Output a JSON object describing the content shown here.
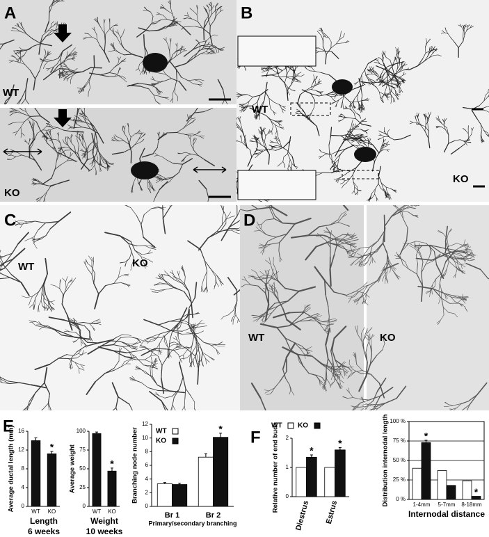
{
  "panel_letters": [
    "A",
    "B",
    "C",
    "D",
    "E",
    "F"
  ],
  "image_tags": {
    "A": [
      "WT",
      "KO"
    ],
    "B": [
      "WT",
      "KO"
    ],
    "C": [
      "WT",
      "KO"
    ],
    "D": [
      "WT",
      "KO"
    ]
  },
  "chart_data": [
    {
      "type": "bar",
      "ylabel": "Average ductal length (mm)",
      "categories": [
        "WT",
        "KO"
      ],
      "values": [
        14,
        11.2
      ],
      "errors": [
        0.6,
        0.5
      ],
      "stars": [
        null,
        "*"
      ],
      "color": "#111111",
      "ylim": [
        0,
        16
      ],
      "yticks": [
        0,
        4,
        8,
        12,
        16
      ],
      "xlabel": [
        "Length",
        "6 weeks"
      ]
    },
    {
      "type": "bar",
      "ylabel": "Average weight",
      "categories": [
        "WT",
        "KO"
      ],
      "values": [
        97,
        47
      ],
      "errors": [
        2,
        4
      ],
      "stars": [
        null,
        "*"
      ],
      "color": "#111111",
      "ylim": [
        0,
        100
      ],
      "yticks": [
        0,
        25,
        50,
        75,
        100
      ],
      "xlabel": [
        "Weight",
        "10 weeks"
      ]
    },
    {
      "type": "bar",
      "ylabel": "Branching node number",
      "categories": [
        "Br 1",
        "Br 2"
      ],
      "series": [
        {
          "name": "WT",
          "color": "#ffffff",
          "values": [
            3.3,
            7.2
          ],
          "errors": [
            0.2,
            0.5
          ],
          "stars": [
            null,
            null
          ]
        },
        {
          "name": "KO",
          "color": "#111111",
          "values": [
            3.2,
            10.1
          ],
          "errors": [
            0.2,
            0.6
          ],
          "stars": [
            null,
            "*"
          ]
        }
      ],
      "ylim": [
        0,
        12
      ],
      "yticks": [
        0,
        2,
        4,
        6,
        8,
        10,
        12
      ],
      "legend": "top-left",
      "xlabel": [
        "Primary/secondary branching"
      ]
    },
    {
      "type": "bar",
      "ylabel": "Relative number of end buds",
      "categories": [
        "Diestrus",
        "Estrus"
      ],
      "series": [
        {
          "name": "WT",
          "color": "#ffffff",
          "values": [
            1,
            1
          ],
          "errors": [
            null,
            null
          ],
          "stars": [
            null,
            null
          ]
        },
        {
          "name": "KO",
          "color": "#111111",
          "values": [
            1.35,
            1.6
          ],
          "errors": [
            0.08,
            0.08
          ],
          "stars": [
            "*",
            "*"
          ]
        }
      ],
      "ylim": [
        0,
        2
      ],
      "yticks": [
        0,
        1,
        2
      ],
      "legend": "top"
    },
    {
      "type": "bar",
      "ylabel": "Distribution internodal length",
      "categories": [
        "1-4mm",
        "5-7mm",
        "8-18mm"
      ],
      "series": [
        {
          "name": "WT",
          "color": "#ffffff",
          "values": [
            40,
            37,
            24
          ],
          "errors": [
            null,
            null,
            null
          ],
          "stars": [
            null,
            null,
            null
          ]
        },
        {
          "name": "KO",
          "color": "#111111",
          "values": [
            73,
            18,
            4
          ],
          "errors": [
            3,
            null,
            null
          ],
          "stars": [
            "*",
            null,
            "*"
          ]
        }
      ],
      "ylim": [
        0,
        100
      ],
      "yticks": [
        {
          "value": 0,
          "label": "0 %"
        },
        {
          "value": 25,
          "label": "25 %"
        },
        {
          "value": 50,
          "label": "50 %"
        },
        {
          "value": 75,
          "label": "75 %"
        },
        {
          "value": 100,
          "label": "100 %"
        }
      ],
      "grid": true,
      "xlabel": [
        "Internodal distance"
      ]
    }
  ]
}
